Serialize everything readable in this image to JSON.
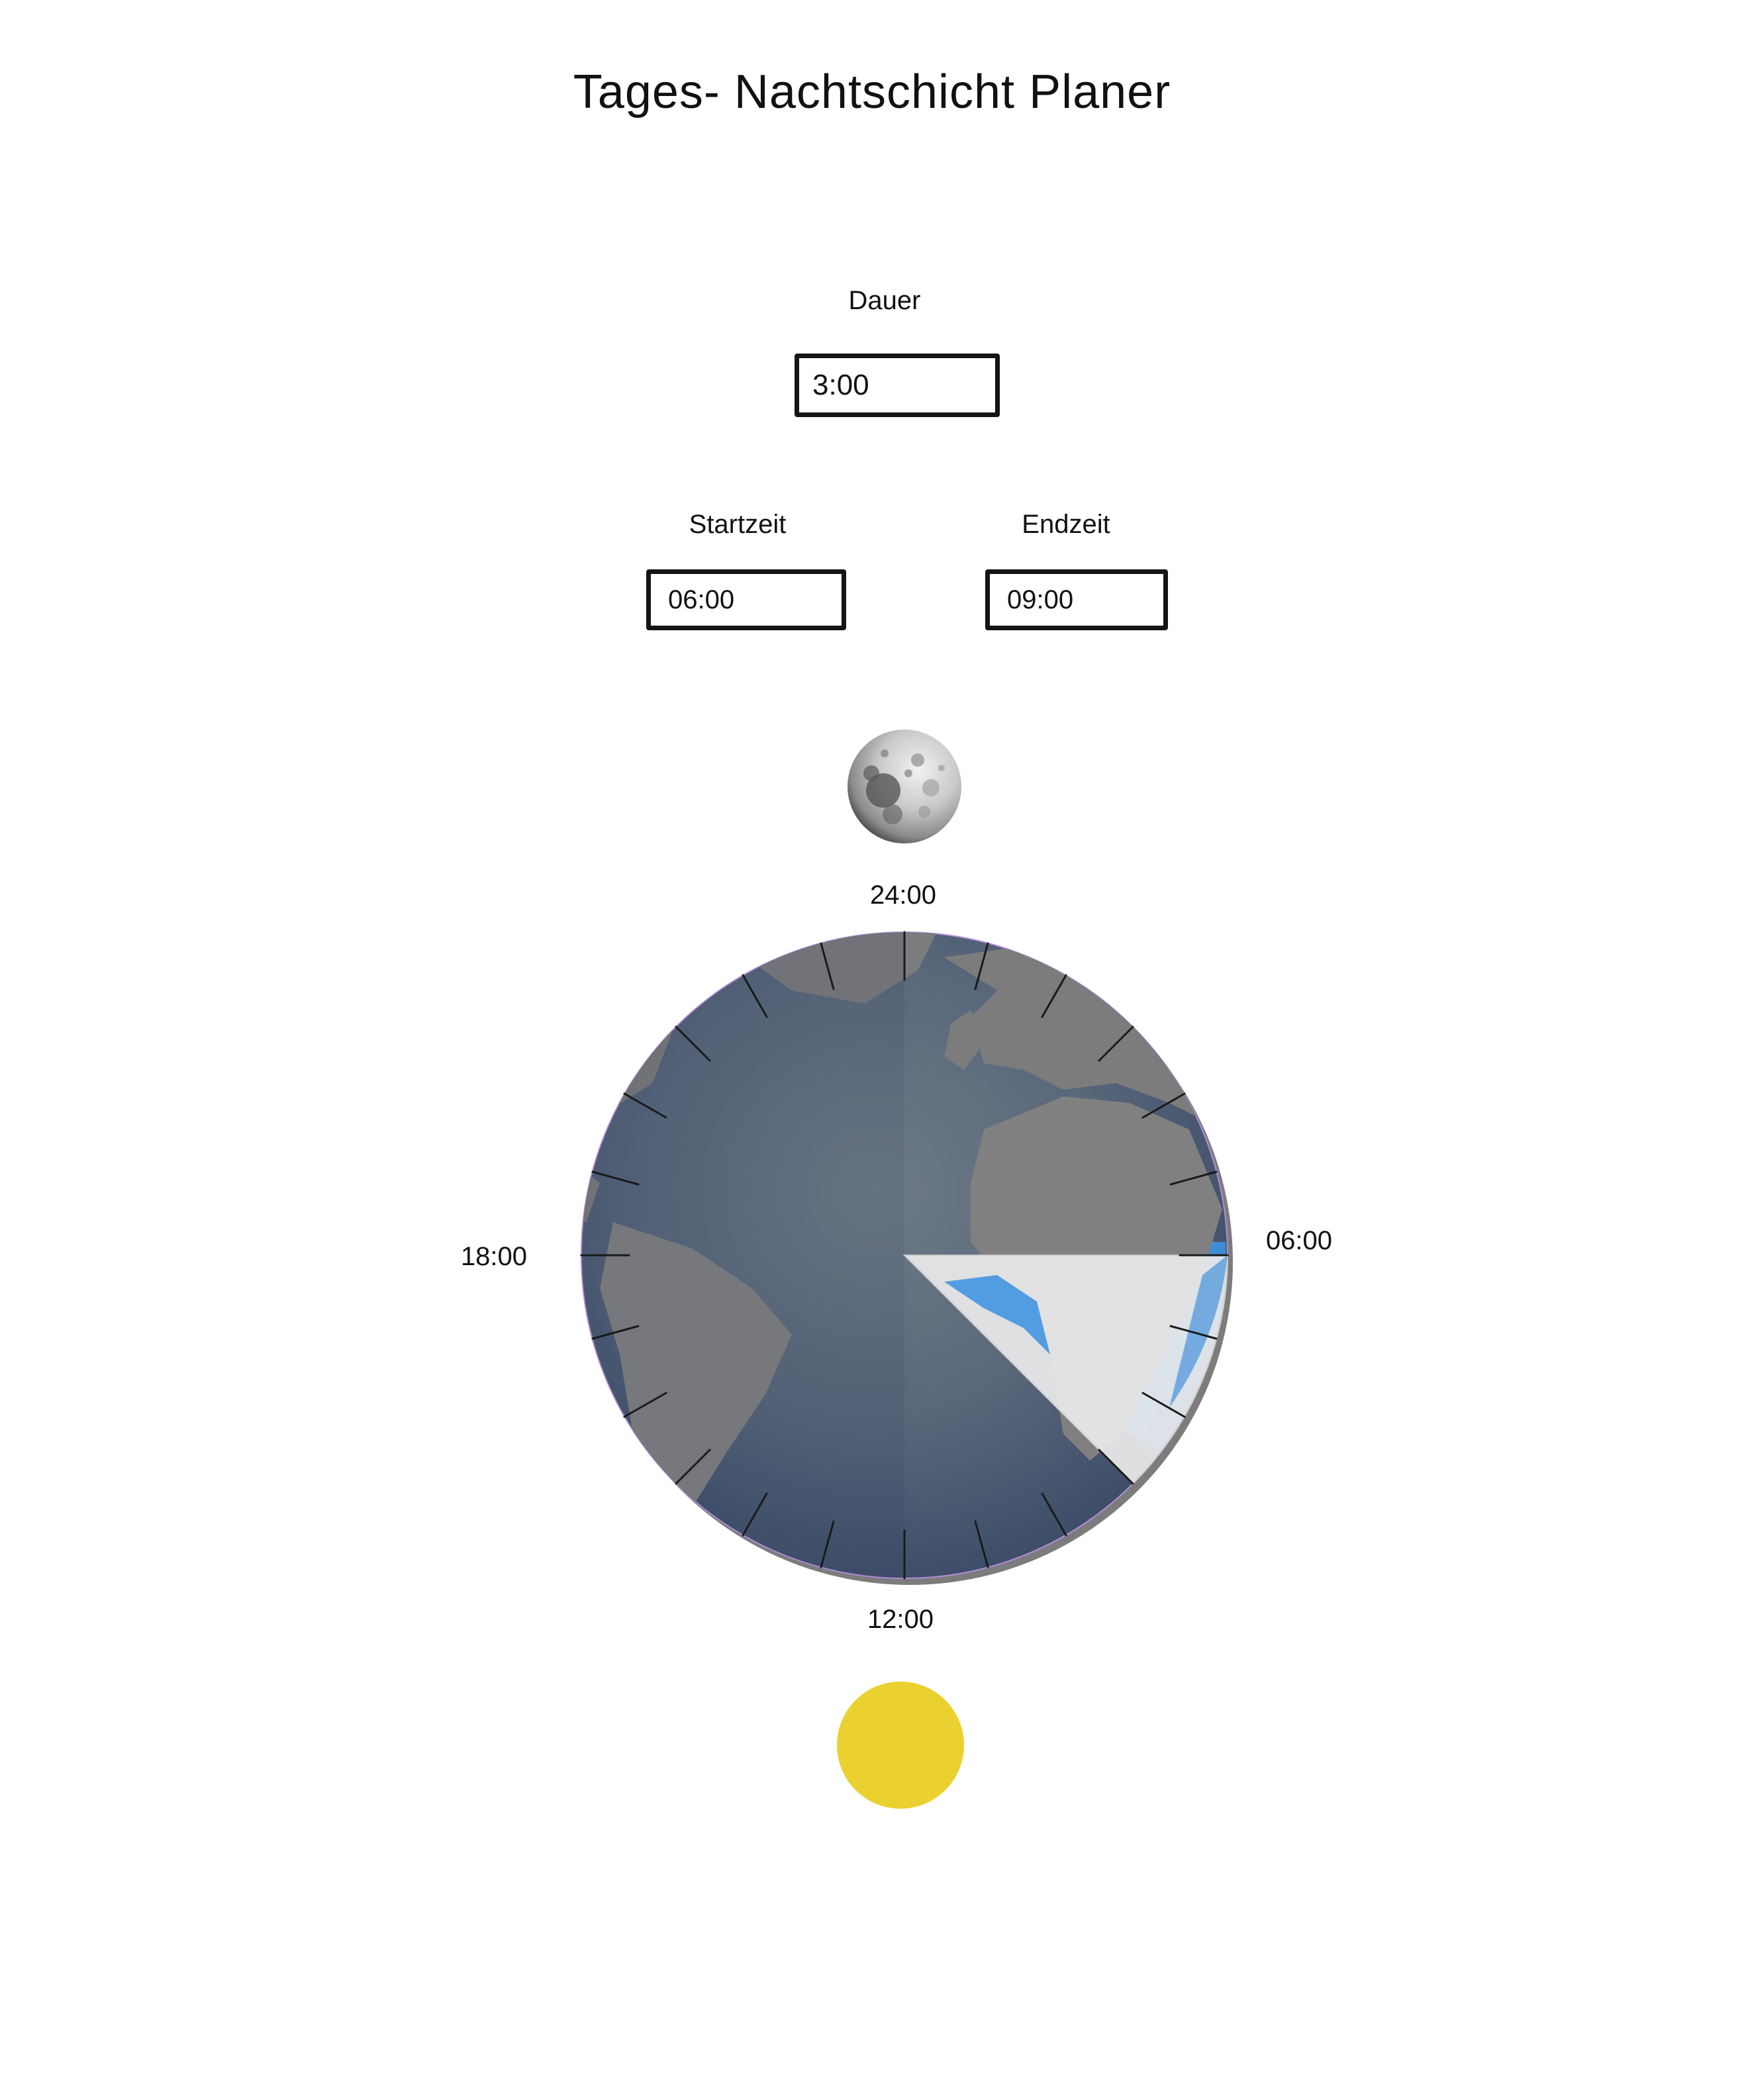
{
  "header": {
    "title": "Tages- Nachtschicht Planer"
  },
  "duration": {
    "label": "Dauer",
    "value": "3:00"
  },
  "start": {
    "label": "Startzeit",
    "value": "06:00"
  },
  "end": {
    "label": "Endzeit",
    "value": "09:00"
  },
  "clock": {
    "top_label": "24:00",
    "right_label": "06:00",
    "bottom_label": "12:00",
    "left_label": "18:00",
    "highlight_color": "#eaeaea",
    "night_overlay_color": "#2a3a5a",
    "ocean_color": "#2f86d8"
  },
  "icons": {
    "moon": "moon-icon",
    "sun": "sun-icon",
    "earth": "earth-globe"
  },
  "colors": {
    "sun": "#ebd12f"
  }
}
